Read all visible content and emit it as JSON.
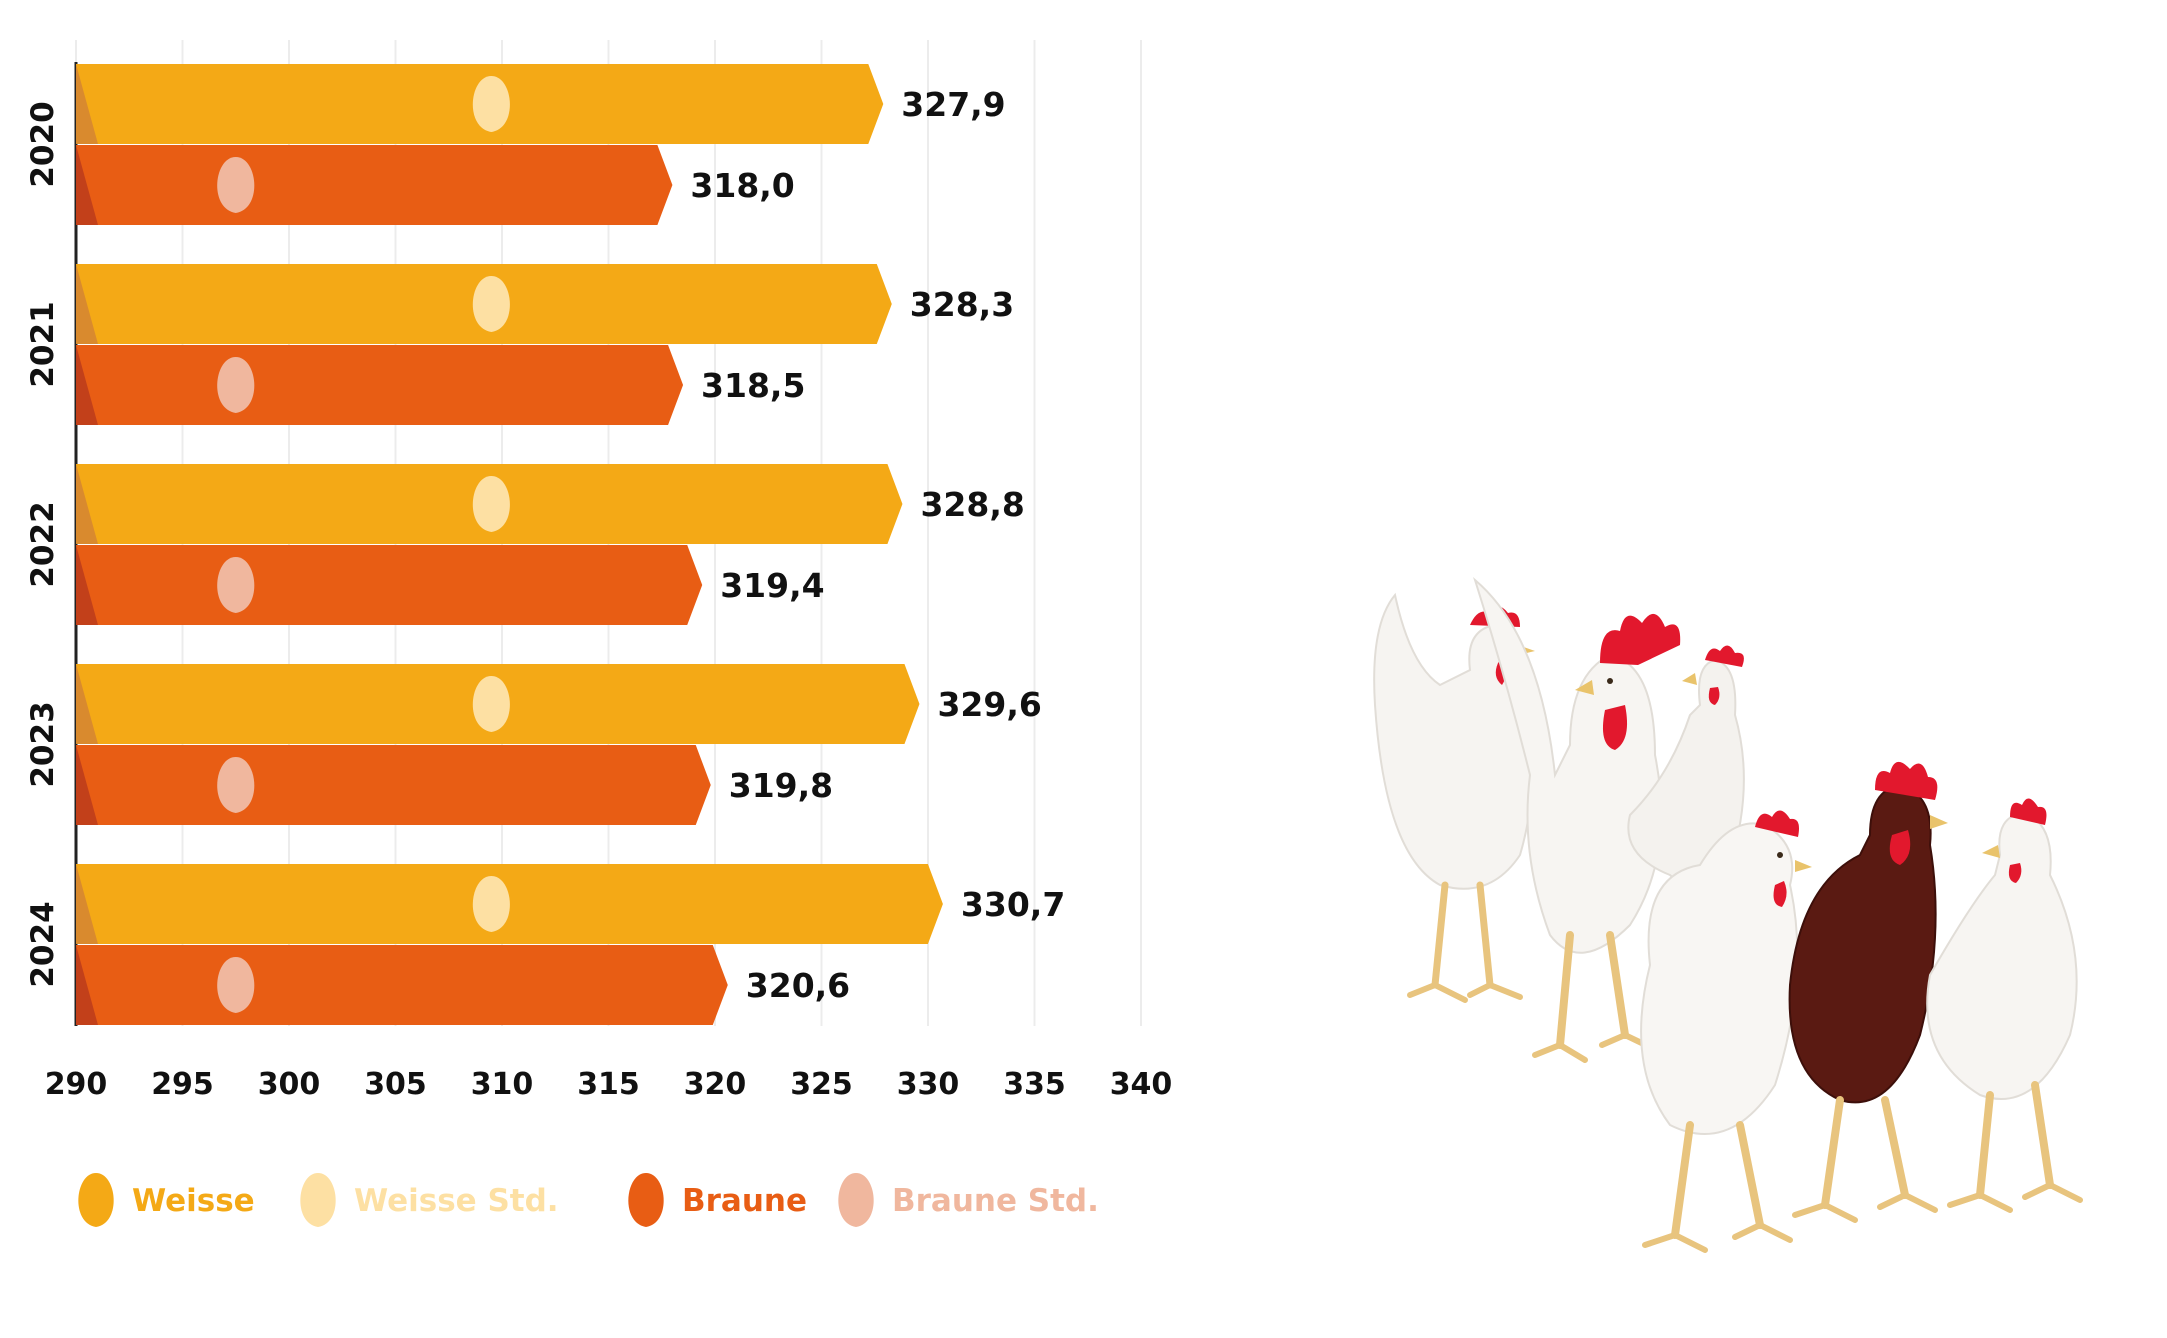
{
  "chart_data": {
    "type": "bar",
    "orientation": "horizontal",
    "categories": [
      "2020",
      "2021",
      "2022",
      "2023",
      "2024"
    ],
    "series": [
      {
        "name": "Weisse",
        "values": [
          327.9,
          328.3,
          328.8,
          329.6,
          330.7
        ],
        "labels": [
          "327,9",
          "328,3",
          "328,8",
          "329,6",
          "330,7"
        ],
        "color": "#F4A916"
      },
      {
        "name": "Braune",
        "values": [
          318.0,
          318.5,
          319.4,
          319.8,
          320.6
        ],
        "labels": [
          "318,0",
          "318,5",
          "319,4",
          "319,8",
          "320,6"
        ],
        "color": "#E85D14"
      }
    ],
    "standards": [
      {
        "name": "Weisse Std.",
        "value": 309.5,
        "color": "#FDE0A3"
      },
      {
        "name": "Braune Std.",
        "value": 297.5,
        "color": "#F0B79E"
      }
    ],
    "xlim": [
      290,
      340
    ],
    "xticks": [
      "290",
      "295",
      "300",
      "305",
      "310",
      "315",
      "320",
      "325",
      "330",
      "335",
      "340"
    ],
    "grid": true,
    "legend_position": "bottom",
    "legend": [
      {
        "label": "Weisse",
        "color": "#F4A916"
      },
      {
        "label": "Weisse Std.",
        "color": "#FDE0A3"
      },
      {
        "label": "Braune",
        "color": "#E85D14"
      },
      {
        "label": "Braune Std.",
        "color": "#F0B79E"
      }
    ]
  },
  "decoration": {
    "icon": "chickens-illustration"
  }
}
